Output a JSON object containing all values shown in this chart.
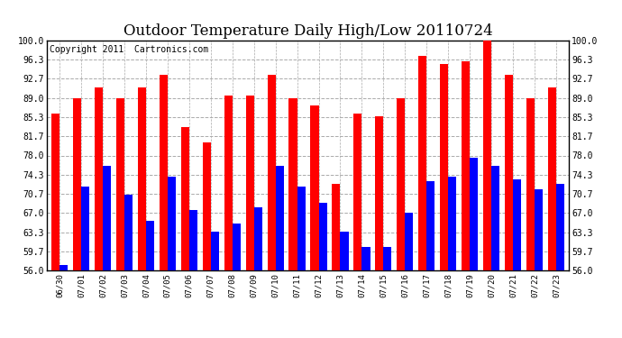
{
  "title": "Outdoor Temperature Daily High/Low 20110724",
  "copyright": "Copyright 2011  Cartronics.com",
  "dates": [
    "06/30",
    "07/01",
    "07/02",
    "07/03",
    "07/04",
    "07/05",
    "07/06",
    "07/07",
    "07/08",
    "07/09",
    "07/10",
    "07/11",
    "07/12",
    "07/13",
    "07/14",
    "07/15",
    "07/16",
    "07/17",
    "07/18",
    "07/19",
    "07/20",
    "07/21",
    "07/22",
    "07/23"
  ],
  "highs": [
    86.0,
    89.0,
    91.0,
    89.0,
    91.0,
    93.5,
    83.5,
    80.5,
    89.5,
    89.5,
    93.5,
    89.0,
    87.5,
    72.5,
    86.0,
    85.5,
    89.0,
    97.0,
    95.5,
    96.0,
    100.0,
    93.5,
    89.0,
    91.0
  ],
  "lows": [
    57.0,
    72.0,
    76.0,
    70.5,
    65.5,
    74.0,
    67.5,
    63.5,
    65.0,
    68.0,
    76.0,
    72.0,
    69.0,
    63.5,
    60.5,
    60.5,
    67.0,
    73.0,
    74.0,
    77.5,
    76.0,
    73.5,
    71.5,
    72.5
  ],
  "ylim": [
    56.0,
    100.0
  ],
  "yticks": [
    56.0,
    59.7,
    63.3,
    67.0,
    70.7,
    74.3,
    78.0,
    81.7,
    85.3,
    89.0,
    92.7,
    96.3,
    100.0
  ],
  "high_color": "#ff0000",
  "low_color": "#0000ff",
  "bg_color": "#ffffff",
  "grid_color": "#aaaaaa",
  "title_fontsize": 12,
  "copyright_fontsize": 7,
  "bar_width": 0.38
}
